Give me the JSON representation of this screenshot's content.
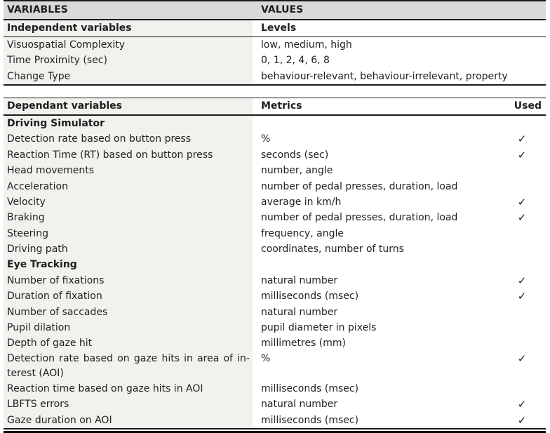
{
  "colors": {
    "header_bg": "#d9d9d9",
    "column1_bg": "#f1f1ee",
    "rule": "#1a1a1a",
    "text": "#1f1f1f"
  },
  "check_glyph": "✓",
  "table1": {
    "header": {
      "variables": "VARIABLES",
      "values": "VALUES"
    },
    "subheader": {
      "variables": "Independent variables",
      "values": "Levels"
    },
    "rows": [
      {
        "variable": "Visuospatial Complexity",
        "value": "low, medium, high"
      },
      {
        "variable": "Time Proximity (sec)",
        "value": "0, 1, 2, 4, 6, 8"
      },
      {
        "variable": "Change Type",
        "value": "behaviour-relevant, behaviour-irrelevant, property"
      }
    ]
  },
  "table2": {
    "header": {
      "variables": "Dependant variables",
      "metrics": "Metrics",
      "used": "Used"
    },
    "rows": [
      {
        "label": "Driving Simulator",
        "metric": "",
        "used": ""
      },
      {
        "label": "Detection rate based on button press",
        "metric": "%",
        "used": "✓"
      },
      {
        "label": "Reaction Time (RT) based on button press",
        "metric": "seconds (sec)",
        "used": "✓"
      },
      {
        "label": "Head movements",
        "metric": "number, angle",
        "used": ""
      },
      {
        "label": "Acceleration",
        "metric": "number of pedal presses, duration, load",
        "used": ""
      },
      {
        "label": "Velocity",
        "metric": "average in km/h",
        "used": "✓"
      },
      {
        "label": "Braking",
        "metric": "number of pedal presses, duration, load",
        "used": "✓"
      },
      {
        "label": "Steering",
        "metric": "frequency, angle",
        "used": ""
      },
      {
        "label": "Driving path",
        "metric": "coordinates, number of turns",
        "used": ""
      },
      {
        "label": "Eye Tracking",
        "metric": "",
        "used": ""
      },
      {
        "label": "Number of fixations",
        "metric": "natural number",
        "used": "✓"
      },
      {
        "label": "Duration of fixation",
        "metric": "milliseconds (msec)",
        "used": "✓"
      },
      {
        "label": "Number of saccades",
        "metric": "natural number",
        "used": ""
      },
      {
        "label": "Pupil dilation",
        "metric": "pupil diameter in pixels",
        "used": ""
      },
      {
        "label": "Depth of gaze hit",
        "metric": "millimetres (mm)",
        "used": ""
      },
      {
        "label": "Detection rate based on gaze hits in area of in­terest (AOI)",
        "metric": "%",
        "used": "✓"
      },
      {
        "label": "Reaction time based on gaze hits in AOI",
        "metric": "milliseconds (msec)",
        "used": ""
      },
      {
        "label": "LBFTS errors",
        "metric": "natural number",
        "used": "✓"
      },
      {
        "label": "Gaze duration on AOI",
        "metric": "milliseconds (msec)",
        "used": "✓"
      }
    ]
  }
}
